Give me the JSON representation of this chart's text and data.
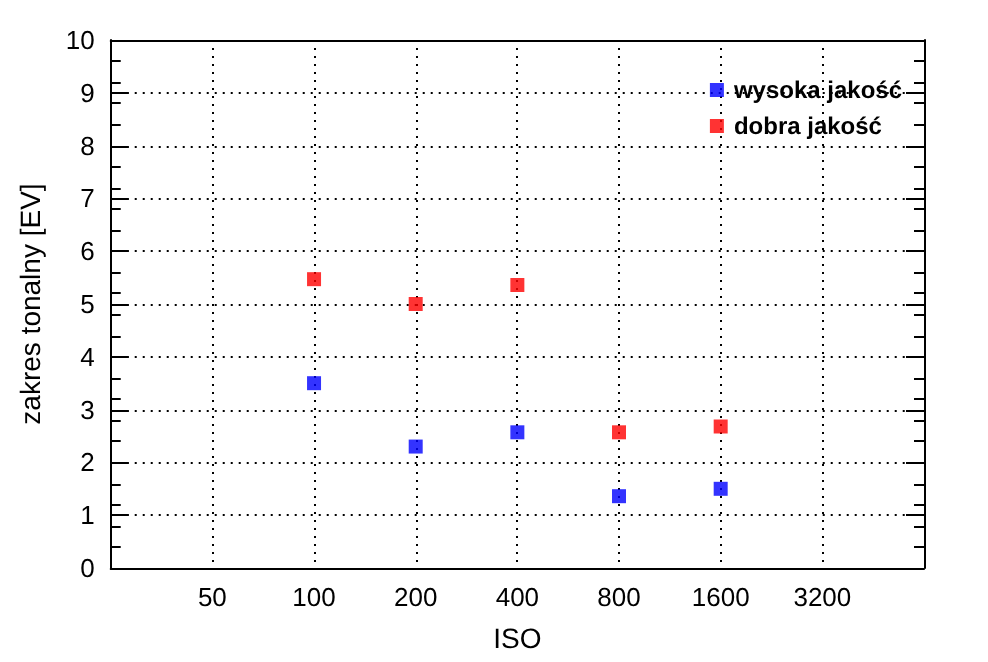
{
  "chart_data": {
    "type": "scatter",
    "xlabel": "ISO",
    "ylabel": "zakres tonalny [EV]",
    "x": [
      100,
      200,
      400,
      800,
      1600
    ],
    "series": [
      {
        "name": "wysoka jakość",
        "color": "#0000ff",
        "values": [
          3.5,
          2.3,
          2.57,
          1.36,
          1.5
        ]
      },
      {
        "name": "dobra jakość",
        "color": "#ff0000",
        "values": [
          5.47,
          5.0,
          5.36,
          2.57,
          2.68
        ]
      }
    ],
    "log": "x",
    "xlim": [
      25,
      6400
    ],
    "xticks": [
      50,
      100,
      200,
      400,
      800,
      1600,
      3200
    ],
    "ylim": [
      0,
      10
    ],
    "yticks": [
      0,
      1,
      2,
      3,
      4,
      5,
      6,
      7,
      8,
      9,
      10
    ],
    "grid": true,
    "legend": "top right",
    "marker": "square"
  }
}
